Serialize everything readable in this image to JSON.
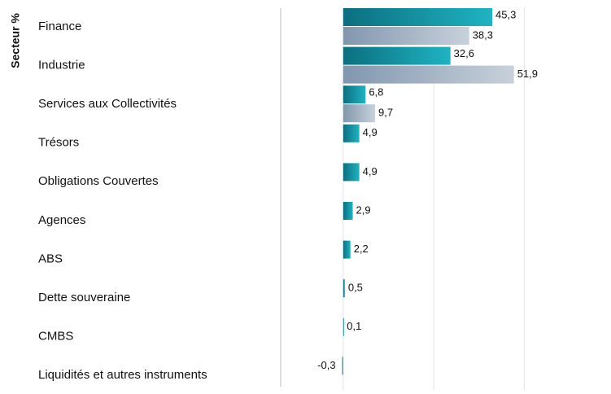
{
  "chart_data": {
    "type": "hbar",
    "y_axis_title": "Secteur %",
    "categories": [
      "Finance",
      "Industrie",
      "Services aux Collectivités",
      "Trésors",
      "Obligations Couvertes",
      "Agences",
      "ABS",
      "Dette souveraine",
      "CMBS",
      "Liquidités et autres instruments"
    ],
    "series": [
      {
        "color": "#1597aa",
        "values": [
          45.3,
          32.6,
          6.8,
          4.9,
          4.9,
          2.9,
          2.2,
          0.5,
          0.1,
          -0.3
        ],
        "value_labels": [
          "45,3",
          "32,6",
          "6,8",
          "4,9",
          "4,9",
          "2,9",
          "2,2",
          "0,5",
          "0,1",
          "-0,3"
        ]
      },
      {
        "color": "#9fb0c3",
        "values": [
          38.3,
          51.9,
          9.7,
          null,
          null,
          null,
          null,
          null,
          null,
          null
        ],
        "value_labels": [
          "38,3",
          "51,9",
          "9,7",
          null,
          null,
          null,
          null,
          null,
          null,
          null
        ]
      }
    ],
    "xlim": [
      -19,
      81.4
    ],
    "xticks": [
      0,
      27.5,
      55
    ],
    "grid": true
  }
}
